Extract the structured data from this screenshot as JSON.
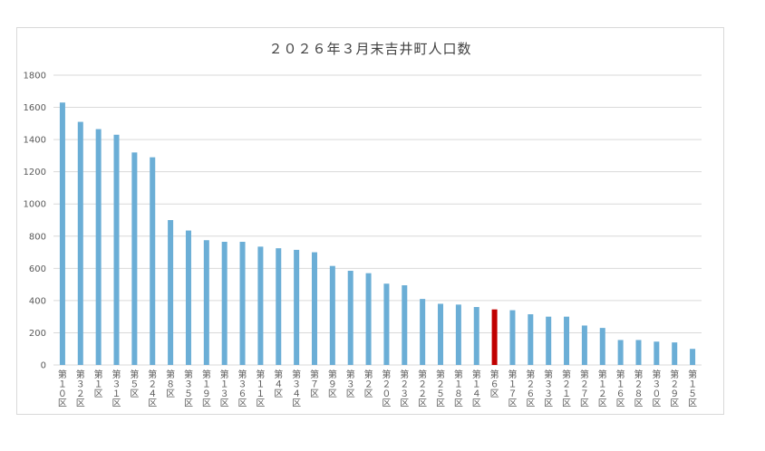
{
  "chart_data": {
    "type": "bar",
    "title": "２０２６年３月末吉井町人口数",
    "xlabel": "",
    "ylabel": "",
    "ylim": [
      0,
      1800
    ],
    "yticks": [
      0,
      200,
      400,
      600,
      800,
      1000,
      1200,
      1400,
      1600,
      1800
    ],
    "grid": true,
    "legend": "none",
    "categories": [
      "第１０区",
      "第３２区",
      "第１区",
      "第３１区",
      "第５区",
      "第２４区",
      "第８区",
      "第３５区",
      "第１９区",
      "第１３区",
      "第３６区",
      "第１１区",
      "第４区",
      "第３４区",
      "第７区",
      "第９区",
      "第３区",
      "第２区",
      "第２０区",
      "第２３区",
      "第２２区",
      "第２５区",
      "第１８区",
      "第１４区",
      "第６区",
      "第１７区",
      "第２６区",
      "第３３区",
      "第２１区",
      "第２７区",
      "第１２区",
      "第１６区",
      "第２８区",
      "第３０区",
      "第２９区",
      "第１５区"
    ],
    "values": [
      1630,
      1510,
      1465,
      1430,
      1320,
      1290,
      900,
      835,
      775,
      765,
      765,
      735,
      725,
      715,
      700,
      615,
      585,
      570,
      505,
      495,
      410,
      380,
      375,
      360,
      345,
      340,
      315,
      300,
      300,
      245,
      230,
      155,
      155,
      145,
      140,
      100
    ],
    "colors": {
      "default": "#6baed6",
      "highlight": "#c00000"
    },
    "highlight_category": "第６区"
  }
}
